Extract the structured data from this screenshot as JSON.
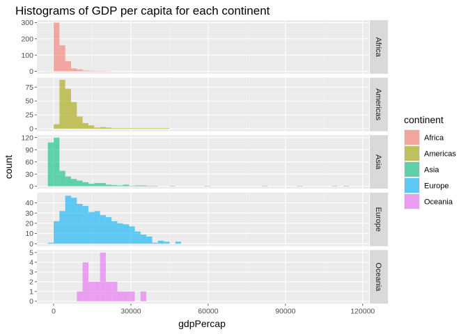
{
  "chart_data": {
    "type": "histogram-facet",
    "title": "Histograms of GDP per capita for each continent",
    "xlabel": "gdpPercap",
    "ylabel": "count",
    "xlim": [
      -6500,
      122500
    ],
    "bin_width": 2250,
    "x_ticks": [
      0,
      30000,
      60000,
      90000,
      120000
    ],
    "x_tick_labels": [
      "0",
      "30000",
      "60000",
      "90000",
      "120000"
    ],
    "legend": {
      "title": "continent",
      "position": "right",
      "items": [
        {
          "label": "Africa",
          "color": "#F8766D"
        },
        {
          "label": "Americas",
          "color": "#A3A500"
        },
        {
          "label": "Asia",
          "color": "#00BF7D"
        },
        {
          "label": "Europe",
          "color": "#00B0F6"
        },
        {
          "label": "Oceania",
          "color": "#E76BF3"
        }
      ]
    },
    "panels": [
      {
        "name": "Africa",
        "color": "#F8766D",
        "ylim": [
          -15,
          315
        ],
        "y_ticks": [
          0,
          100,
          200,
          300
        ],
        "y_tick_labels": [
          "0",
          "100",
          "200",
          "300"
        ],
        "bins": [
          {
            "x": -1125,
            "count": 1
          },
          {
            "x": 1125,
            "count": 300
          },
          {
            "x": 3375,
            "count": 160
          },
          {
            "x": 5625,
            "count": 62
          },
          {
            "x": 7875,
            "count": 18
          },
          {
            "x": 10125,
            "count": 12
          },
          {
            "x": 12375,
            "count": 5
          },
          {
            "x": 14625,
            "count": 3
          },
          {
            "x": 16875,
            "count": 2
          },
          {
            "x": 19125,
            "count": 2
          },
          {
            "x": 21375,
            "count": 1
          }
        ]
      },
      {
        "name": "Americas",
        "color": "#A3A500",
        "ylim": [
          -4.5,
          92
        ],
        "y_ticks": [
          0,
          25,
          50,
          75
        ],
        "y_tick_labels": [
          "0",
          "25",
          "50",
          "75"
        ],
        "bins": [
          {
            "x": 1125,
            "count": 8
          },
          {
            "x": 3375,
            "count": 88
          },
          {
            "x": 5625,
            "count": 72
          },
          {
            "x": 7875,
            "count": 48
          },
          {
            "x": 10125,
            "count": 22
          },
          {
            "x": 12375,
            "count": 10
          },
          {
            "x": 14625,
            "count": 6
          },
          {
            "x": 16875,
            "count": 2
          },
          {
            "x": 19125,
            "count": 3
          },
          {
            "x": 21375,
            "count": 2
          },
          {
            "x": 23625,
            "count": 1
          },
          {
            "x": 25875,
            "count": 1
          },
          {
            "x": 28125,
            "count": 1
          },
          {
            "x": 30375,
            "count": 1
          },
          {
            "x": 32625,
            "count": 1
          },
          {
            "x": 34875,
            "count": 1
          },
          {
            "x": 37125,
            "count": 1
          },
          {
            "x": 39375,
            "count": 1
          },
          {
            "x": 41625,
            "count": 1
          },
          {
            "x": 43875,
            "count": 1
          }
        ]
      },
      {
        "name": "Asia",
        "color": "#00BF7D",
        "ylim": [
          -6,
          126
        ],
        "y_ticks": [
          0,
          30,
          60,
          90,
          120
        ],
        "y_tick_labels": [
          "0",
          "30",
          "60",
          "90",
          "120"
        ],
        "bins": [
          {
            "x": -1125,
            "count": 108
          },
          {
            "x": 1125,
            "count": 120
          },
          {
            "x": 3375,
            "count": 38
          },
          {
            "x": 5625,
            "count": 24
          },
          {
            "x": 7875,
            "count": 18
          },
          {
            "x": 10125,
            "count": 14
          },
          {
            "x": 12375,
            "count": 10
          },
          {
            "x": 14625,
            "count": 6
          },
          {
            "x": 16875,
            "count": 8
          },
          {
            "x": 19125,
            "count": 8
          },
          {
            "x": 21375,
            "count": 4
          },
          {
            "x": 23625,
            "count": 3
          },
          {
            "x": 25875,
            "count": 2
          },
          {
            "x": 28125,
            "count": 4
          },
          {
            "x": 30375,
            "count": 1
          },
          {
            "x": 32625,
            "count": 2
          },
          {
            "x": 34875,
            "count": 2
          },
          {
            "x": 37125,
            "count": 1
          },
          {
            "x": 39375,
            "count": 1
          },
          {
            "x": 46125,
            "count": 1
          },
          {
            "x": 59625,
            "count": 1
          },
          {
            "x": 82125,
            "count": 1
          },
          {
            "x": 95625,
            "count": 1
          },
          {
            "x": 109125,
            "count": 1
          },
          {
            "x": 113625,
            "count": 1
          }
        ]
      },
      {
        "name": "Europe",
        "color": "#00B0F6",
        "ylim": [
          -2.4,
          50
        ],
        "y_ticks": [
          0,
          10,
          20,
          30,
          40
        ],
        "y_tick_labels": [
          "0",
          "10",
          "20",
          "30",
          "40"
        ],
        "bins": [
          {
            "x": -1125,
            "count": 1
          },
          {
            "x": 1125,
            "count": 22
          },
          {
            "x": 3375,
            "count": 32
          },
          {
            "x": 5625,
            "count": 47
          },
          {
            "x": 7875,
            "count": 45
          },
          {
            "x": 10125,
            "count": 39
          },
          {
            "x": 12375,
            "count": 37
          },
          {
            "x": 14625,
            "count": 31
          },
          {
            "x": 16875,
            "count": 32
          },
          {
            "x": 19125,
            "count": 28
          },
          {
            "x": 21375,
            "count": 26
          },
          {
            "x": 23625,
            "count": 22
          },
          {
            "x": 25875,
            "count": 20
          },
          {
            "x": 28125,
            "count": 19
          },
          {
            "x": 30375,
            "count": 17
          },
          {
            "x": 32625,
            "count": 12
          },
          {
            "x": 34875,
            "count": 9
          },
          {
            "x": 37125,
            "count": 7
          },
          {
            "x": 39375,
            "count": 1
          },
          {
            "x": 41625,
            "count": 3
          },
          {
            "x": 43875,
            "count": 2
          },
          {
            "x": 48375,
            "count": 2
          }
        ]
      },
      {
        "name": "Oceania",
        "color": "#E76BF3",
        "ylim": [
          -0.25,
          5.25
        ],
        "y_ticks": [
          0,
          1,
          2,
          3,
          4,
          5
        ],
        "y_tick_labels": [
          "0",
          "1",
          "2",
          "3",
          "4",
          "5"
        ],
        "bins": [
          {
            "x": 10125,
            "count": 1
          },
          {
            "x": 12375,
            "count": 4
          },
          {
            "x": 14625,
            "count": 2
          },
          {
            "x": 16875,
            "count": 2
          },
          {
            "x": 19125,
            "count": 5
          },
          {
            "x": 21375,
            "count": 2
          },
          {
            "x": 23625,
            "count": 2
          },
          {
            "x": 25875,
            "count": 1
          },
          {
            "x": 28125,
            "count": 1
          },
          {
            "x": 30375,
            "count": 1
          },
          {
            "x": 32625,
            "count": 0
          },
          {
            "x": 34875,
            "count": 1
          }
        ]
      }
    ]
  }
}
